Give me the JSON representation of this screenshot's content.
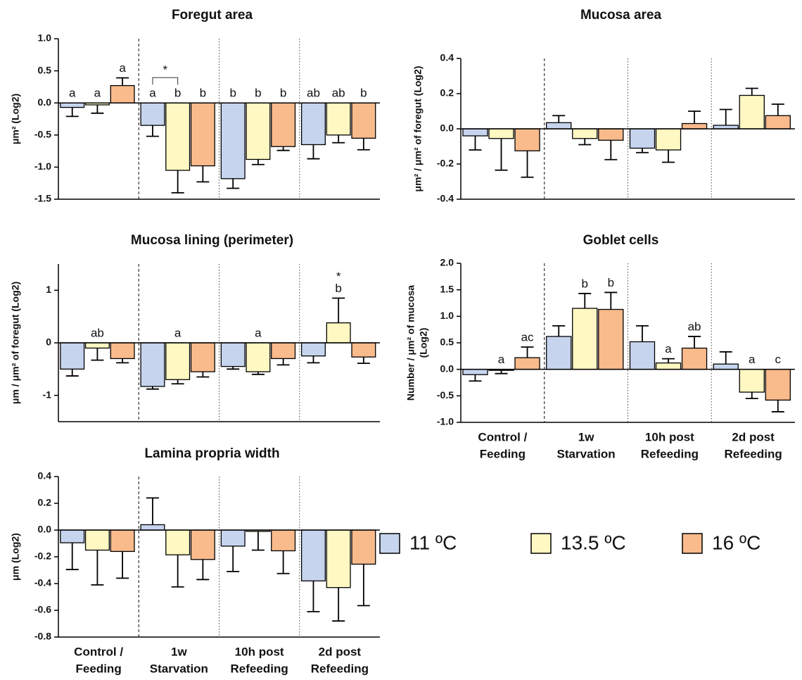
{
  "legend": [
    {
      "name": "11 ºC",
      "color": "#c6d4ee"
    },
    {
      "name": "13.5 ºC",
      "color": "#fff8c2"
    },
    {
      "name": "16 ºC",
      "color": "#f9ba8c"
    }
  ],
  "chart_data": [
    {
      "type": "bar",
      "title": "Foregut area",
      "y_label": [
        "μm² (Log2)"
      ],
      "ylim": [
        -1.5,
        1.0
      ],
      "yticks": [
        {
          "value": -1.5,
          "label": "-1.5"
        },
        {
          "value": -1.0,
          "label": "-1.0"
        },
        {
          "value": -0.5,
          "label": "-0.5"
        },
        {
          "value": 0,
          "label": "0.0"
        },
        {
          "value": 0.5,
          "label": "0.5"
        },
        {
          "value": 1.0,
          "label": "1.0"
        }
      ],
      "series": [
        {
          "values": [
            -0.07,
            -0.35,
            -1.18,
            -0.65
          ],
          "errors": [
            0.14,
            0.17,
            0.15,
            0.22
          ],
          "letters": [
            "a",
            "a",
            "b",
            "ab"
          ]
        },
        {
          "values": [
            -0.03,
            -1.05,
            -0.88,
            -0.5
          ],
          "errors": [
            0.13,
            0.35,
            0.08,
            0.12
          ],
          "letters": [
            "a",
            "b",
            "b",
            "ab"
          ]
        },
        {
          "values": [
            0.27,
            -0.98,
            -0.68,
            -0.55
          ],
          "errors": [
            0.12,
            0.25,
            0.06,
            0.18
          ],
          "letters": [
            "a",
            "b",
            "b",
            "b"
          ]
        }
      ],
      "brackets": [
        {
          "text": "*",
          "group": 1,
          "from": 0,
          "to": 1
        }
      ]
    },
    {
      "type": "bar",
      "title": "Mucosa area",
      "y_label": [
        "μm² / μm² of foregut (Log2)"
      ],
      "ylim": [
        -0.4,
        0.4
      ],
      "yticks": [
        {
          "value": -0.4,
          "label": "-0.4"
        },
        {
          "value": -0.2,
          "label": "-0.2"
        },
        {
          "value": 0,
          "label": "0.0"
        },
        {
          "value": 0.2,
          "label": "0.2"
        },
        {
          "value": 0.4,
          "label": "0.4"
        }
      ],
      "series": [
        {
          "values": [
            -0.04,
            0.035,
            -0.11,
            0.02
          ],
          "errors": [
            0.08,
            0.04,
            0.025,
            0.09
          ]
        },
        {
          "values": [
            -0.055,
            -0.055,
            -0.12,
            0.19
          ],
          "errors": [
            0.18,
            0.035,
            0.07,
            0.04
          ]
        },
        {
          "values": [
            -0.125,
            -0.065,
            0.03,
            0.075
          ],
          "errors": [
            0.15,
            0.11,
            0.07,
            0.065
          ]
        }
      ]
    },
    {
      "type": "bar",
      "title": "Mucosa lining (perimeter)",
      "y_label": [
        "μm / μm² of foregut (Log2)"
      ],
      "ylim": [
        -1.5,
        1.5
      ],
      "yticks": [
        -1,
        0,
        1
      ],
      "series": [
        {
          "values": [
            -0.5,
            -0.83,
            -0.45,
            -0.25
          ],
          "errors": [
            0.13,
            0.05,
            0.05,
            0.13
          ],
          "letters": [
            null,
            null,
            null,
            null
          ]
        },
        {
          "values": [
            -0.1,
            -0.7,
            -0.55,
            0.38
          ],
          "errors": [
            0.23,
            0.08,
            0.05,
            0.47
          ],
          "letters": [
            "ab",
            "a",
            "a",
            "b"
          ]
        },
        {
          "values": [
            -0.3,
            -0.55,
            -0.3,
            -0.27
          ],
          "errors": [
            0.08,
            0.1,
            0.12,
            0.12
          ],
          "letters": [
            null,
            null,
            null,
            null
          ]
        }
      ],
      "brackets": [
        {
          "text": "*",
          "group": 3,
          "from": 1,
          "to": 1
        }
      ]
    },
    {
      "type": "bar",
      "title": "Goblet cells",
      "y_label": [
        "Number / μm² of mucosa",
        "(Log2)"
      ],
      "ylim": [
        -1.0,
        2.0
      ],
      "yticks": [
        {
          "value": -1.0,
          "label": "-1.0"
        },
        {
          "value": -0.5,
          "label": "-0.5"
        },
        {
          "value": 0,
          "label": "0.0"
        },
        {
          "value": 0.5,
          "label": "0.5"
        },
        {
          "value": 1.0,
          "label": "1.0"
        },
        {
          "value": 1.5,
          "label": "1.5"
        },
        {
          "value": 2.0,
          "label": "2.0"
        }
      ],
      "categories": [
        [
          "Control /",
          "Feeding"
        ],
        [
          "1w",
          "Starvation"
        ],
        [
          "10h post",
          "Refeeding"
        ],
        [
          "2d post",
          "Refeeding"
        ]
      ],
      "series": [
        {
          "values": [
            -0.1,
            0.62,
            0.52,
            0.1
          ],
          "errors": [
            0.12,
            0.2,
            0.3,
            0.23
          ],
          "letters": [
            null,
            null,
            null,
            null
          ]
        },
        {
          "values": [
            -0.02,
            1.15,
            0.12,
            -0.43
          ],
          "errors": [
            0.06,
            0.28,
            0.08,
            0.12
          ],
          "letters": [
            "a",
            "b",
            "a",
            "a"
          ]
        },
        {
          "values": [
            0.22,
            1.13,
            0.4,
            -0.58
          ],
          "errors": [
            0.2,
            0.32,
            0.22,
            0.22
          ],
          "letters": [
            "ac",
            "b",
            "ab",
            "c"
          ]
        }
      ]
    },
    {
      "type": "bar",
      "title": "Lamina propria width",
      "y_label": [
        "μm (Log2)"
      ],
      "ylim": [
        -0.8,
        0.4
      ],
      "yticks": [
        {
          "value": -0.8,
          "label": "-0.8"
        },
        {
          "value": -0.6,
          "label": "-0.6"
        },
        {
          "value": -0.4,
          "label": "-0.4"
        },
        {
          "value": -0.2,
          "label": "-0.2"
        },
        {
          "value": 0,
          "label": "0.0"
        },
        {
          "value": 0.2,
          "label": "0.2"
        },
        {
          "value": 0.4,
          "label": "0.4"
        }
      ],
      "categories": [
        [
          "Control /",
          "Feeding"
        ],
        [
          "1w",
          "Starvation"
        ],
        [
          "10h post",
          "Refeeding"
        ],
        [
          "2d post",
          "Refeeding"
        ]
      ],
      "series": [
        {
          "values": [
            -0.095,
            0.04,
            -0.12,
            -0.38
          ],
          "errors": [
            0.2,
            0.2,
            0.19,
            0.23
          ]
        },
        {
          "values": [
            -0.15,
            -0.185,
            -0.01,
            -0.43
          ],
          "errors": [
            0.26,
            0.24,
            0.14,
            0.25
          ]
        },
        {
          "values": [
            -0.16,
            -0.22,
            -0.155,
            -0.255
          ],
          "errors": [
            0.2,
            0.15,
            0.17,
            0.31
          ]
        }
      ]
    }
  ]
}
